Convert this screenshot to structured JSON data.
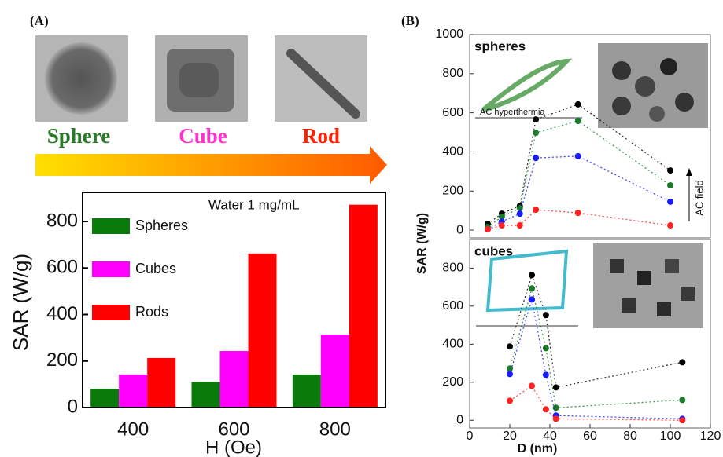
{
  "figure": {
    "panel_a_label": "(A)",
    "panel_b_label": "(B)",
    "shapes": [
      "Sphere",
      "Cube",
      "Rod"
    ],
    "shape_colors": [
      "#2a7a2a",
      "#ff33cc",
      "#ff2200"
    ]
  },
  "chart_data": [
    {
      "type": "bar",
      "xlabel": "H (Oe)",
      "ylabel": "SAR (W/g)",
      "annotation": "Water 1 mg/mL",
      "categories": [
        "400",
        "600",
        "800"
      ],
      "ylim": [
        0,
        925
      ],
      "yticks": [
        0,
        200,
        400,
        600,
        800
      ],
      "series": [
        {
          "name": "Spheres",
          "color": "#0a7a0a",
          "values": [
            81,
            111,
            142
          ]
        },
        {
          "name": "Cubes",
          "color": "#ff00ff",
          "values": [
            142,
            243,
            314
          ]
        },
        {
          "name": "Rods",
          "color": "#ff0000",
          "values": [
            213,
            662,
            872
          ]
        }
      ]
    },
    {
      "type": "scatter",
      "title": "spheres",
      "annotations": [
        "AC hyperthermia",
        "AC field"
      ],
      "x": [
        9,
        16,
        25,
        33,
        54,
        100
      ],
      "xlim": [
        0,
        120
      ],
      "ylim": [
        -40,
        1000
      ],
      "yticks": [
        0,
        200,
        400,
        600,
        800,
        1000
      ],
      "series": [
        {
          "color": "#000000",
          "values": [
            32,
            84,
            124,
            566,
            643,
            305
          ]
        },
        {
          "color": "#1a7a2a",
          "values": [
            16,
            68,
            112,
            498,
            558,
            229
          ]
        },
        {
          "color": "#1a1aff",
          "values": [
            4,
            44,
            84,
            369,
            378,
            145
          ]
        },
        {
          "color": "#ff2020",
          "values": [
            4,
            24,
            24,
            104,
            88,
            24
          ]
        }
      ]
    },
    {
      "type": "scatter",
      "title": "cubes",
      "xlabel": "D (nm)",
      "ylabel": "SAR (W/g)",
      "x": [
        20,
        31,
        38,
        43,
        106
      ],
      "xlim": [
        0,
        120
      ],
      "xticks": [
        0,
        20,
        40,
        60,
        80,
        100,
        120
      ],
      "ylim": [
        -40,
        950
      ],
      "yticks": [
        0,
        200,
        400,
        600,
        800
      ],
      "series": [
        {
          "color": "#000000",
          "values": [
            388,
            763,
            553,
            173,
            305
          ]
        },
        {
          "color": "#1a7a2a",
          "values": [
            272,
            693,
            379,
            66,
            107
          ]
        },
        {
          "color": "#1a1aff",
          "values": [
            243,
            635,
            239,
            25,
            8
          ]
        },
        {
          "color": "#ff2020",
          "values": [
            103,
            181,
            58,
            8,
            0
          ]
        }
      ]
    }
  ]
}
